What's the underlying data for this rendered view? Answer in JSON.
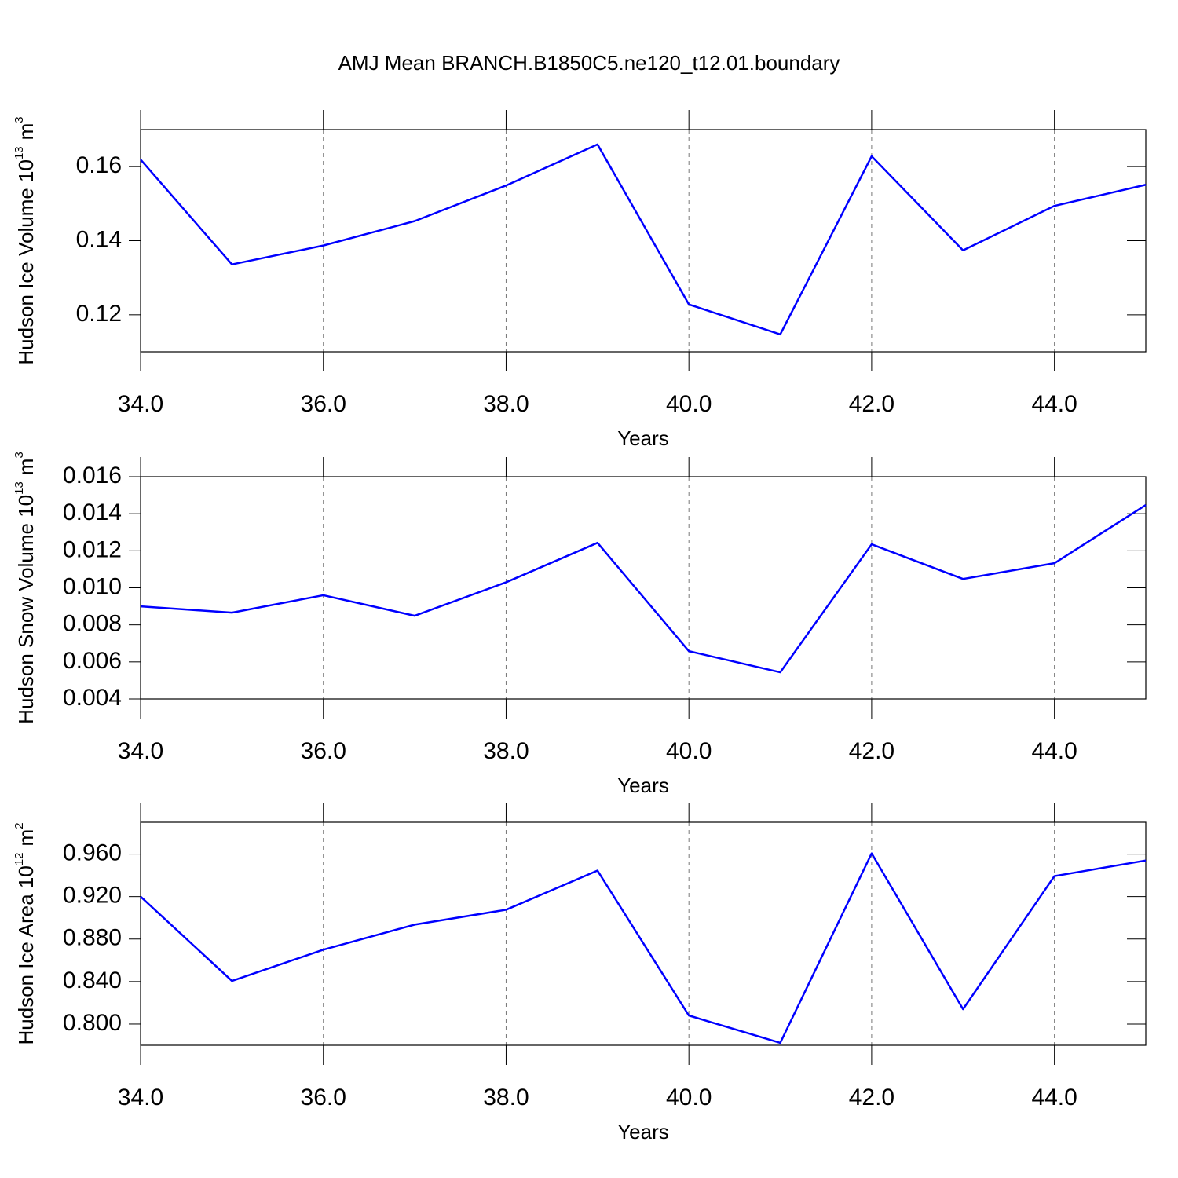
{
  "chart_data": [
    {
      "type": "line",
      "title": "AMJ Mean BRANCH.B1850C5.ne120_t12.01.boundary",
      "ylabel": {
        "text": "Hudson Ice Volume 10",
        "power": "13",
        "unit": "m",
        "unit_power": "3"
      },
      "xlabel": "Years",
      "x": [
        34,
        35,
        36,
        37,
        38,
        39,
        40,
        41,
        42,
        43,
        44,
        45
      ],
      "values": [
        0.1619,
        0.1336,
        0.1387,
        0.1453,
        0.1549,
        0.166,
        0.1228,
        0.1147,
        0.1628,
        0.1374,
        0.1494,
        0.1551
      ],
      "color": "#0000ff",
      "xlim": [
        34,
        45
      ],
      "xticks": [
        {
          "value": 34,
          "label": "34.0"
        },
        {
          "value": 36,
          "label": "36.0"
        },
        {
          "value": 38,
          "label": "38.0"
        },
        {
          "value": 40,
          "label": "40.0"
        },
        {
          "value": 42,
          "label": "42.0"
        },
        {
          "value": 44,
          "label": "44.0"
        }
      ],
      "ylim": [
        0.11,
        0.17
      ],
      "yticks": [
        0.12,
        0.14,
        0.16
      ],
      "xgrid": true
    },
    {
      "type": "line",
      "ylabel": {
        "text": "Hudson Snow Volume 10",
        "power": "13",
        "unit": "m",
        "unit_power": "3"
      },
      "xlabel": "Years",
      "x": [
        34,
        35,
        36,
        37,
        38,
        39,
        40,
        41,
        42,
        43,
        44,
        45
      ],
      "values": [
        0.009,
        0.00866,
        0.0096,
        0.00849,
        0.0103,
        0.01243,
        0.00658,
        0.00544,
        0.01235,
        0.01048,
        0.01133,
        0.01447
      ],
      "color": "#0000ff",
      "xlim": [
        34,
        45
      ],
      "xticks": [
        {
          "value": 34,
          "label": "34.0"
        },
        {
          "value": 36,
          "label": "36.0"
        },
        {
          "value": 38,
          "label": "38.0"
        },
        {
          "value": 40,
          "label": "40.0"
        },
        {
          "value": 42,
          "label": "42.0"
        },
        {
          "value": 44,
          "label": "44.0"
        }
      ],
      "ylim": [
        0.004,
        0.016
      ],
      "yticks": [
        0.004,
        0.006,
        0.008,
        {
          "value": 0.01,
          "label": "0.010"
        },
        0.012,
        0.014,
        0.016
      ],
      "xgrid": true
    },
    {
      "type": "line",
      "ylabel": {
        "text": "Hudson Ice Area 10",
        "power": "12",
        "unit": "m",
        "unit_power": "2"
      },
      "xlabel": "Years",
      "x": [
        34,
        35,
        36,
        37,
        38,
        39,
        40,
        41,
        42,
        43,
        44,
        45
      ],
      "values": [
        0.92,
        0.8406,
        0.87,
        0.8936,
        0.9076,
        0.9445,
        0.808,
        0.7823,
        0.9607,
        0.814,
        0.9393,
        0.954
      ],
      "color": "#0000ff",
      "xlim": [
        34,
        45
      ],
      "xticks": [
        {
          "value": 34,
          "label": "34.0"
        },
        {
          "value": 36,
          "label": "36.0"
        },
        {
          "value": 38,
          "label": "38.0"
        },
        {
          "value": 40,
          "label": "40.0"
        },
        {
          "value": 42,
          "label": "42.0"
        },
        {
          "value": 44,
          "label": "44.0"
        }
      ],
      "ylim": [
        0.78,
        0.99
      ],
      "yticks": [
        {
          "value": 0.8,
          "label": "0.800"
        },
        {
          "value": 0.84,
          "label": "0.840"
        },
        {
          "value": 0.88,
          "label": "0.880"
        },
        {
          "value": 0.92,
          "label": "0.920"
        },
        {
          "value": 0.96,
          "label": "0.960"
        }
      ],
      "xgrid": true
    }
  ]
}
